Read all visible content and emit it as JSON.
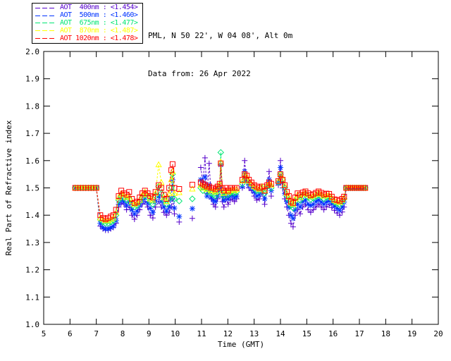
{
  "header": {
    "line1": "PML, N 50 22', W 04 08', Alt 0m",
    "line2": "Data from: 26 Apr 2022"
  },
  "legend": {
    "items": [
      {
        "label": "AOT  400nm : <1.454>",
        "color": "#5500cc",
        "marker": "plus-icon"
      },
      {
        "label": "AOT  500nm : <1.460>",
        "color": "#0033ff",
        "marker": "asterisk-icon"
      },
      {
        "label": "AOT  675nm : <1.477>",
        "color": "#00e673",
        "marker": "diamond-icon"
      },
      {
        "label": "AOT  870nm : <1.487>",
        "color": "#ffff00",
        "marker": "triangle-icon"
      },
      {
        "label": "AOT 1020nm : <1.478>",
        "color": "#ff0000",
        "marker": "square-icon"
      }
    ]
  },
  "chart_data": {
    "type": "line",
    "title": "",
    "xlabel": "Time (GMT)",
    "ylabel": "Real Part of Refractive index",
    "xlim": [
      5,
      20
    ],
    "ylim": [
      1.0,
      2.0
    ],
    "x_ticks": [
      5,
      6,
      7,
      8,
      9,
      10,
      11,
      12,
      13,
      14,
      15,
      16,
      17,
      18,
      19,
      20
    ],
    "y_ticks": [
      1.0,
      1.1,
      1.2,
      1.3,
      1.4,
      1.5,
      1.6,
      1.7,
      1.8,
      1.9,
      2.0
    ],
    "grid": false,
    "legend_position": "top-left",
    "line_style": "dashed",
    "gap_threshold": 0.17,
    "x": [
      6.2,
      6.3,
      6.4,
      6.5,
      6.6,
      6.7,
      6.8,
      6.9,
      7.0,
      7.15,
      7.25,
      7.35,
      7.45,
      7.55,
      7.65,
      7.75,
      7.85,
      7.95,
      8.05,
      8.15,
      8.25,
      8.35,
      8.45,
      8.55,
      8.65,
      8.75,
      8.85,
      8.95,
      9.05,
      9.15,
      9.25,
      9.37,
      9.47,
      9.57,
      9.67,
      9.77,
      9.85,
      9.9,
      9.97,
      10.15,
      10.65,
      10.97,
      11.05,
      11.13,
      11.21,
      11.29,
      11.37,
      11.45,
      11.53,
      11.61,
      11.69,
      11.73,
      11.79,
      11.85,
      11.93,
      12.01,
      12.09,
      12.17,
      12.25,
      12.33,
      12.55,
      12.64,
      12.72,
      12.8,
      12.9,
      13.0,
      13.1,
      13.2,
      13.3,
      13.4,
      13.5,
      13.57,
      13.65,
      13.92,
      14.0,
      14.08,
      14.16,
      14.24,
      14.32,
      14.4,
      14.48,
      14.56,
      14.65,
      14.75,
      14.85,
      14.95,
      15.05,
      15.15,
      15.25,
      15.35,
      15.45,
      15.55,
      15.65,
      15.75,
      15.85,
      15.95,
      16.05,
      16.15,
      16.25,
      16.35,
      16.42,
      16.5,
      16.58,
      16.66,
      16.74,
      16.82,
      16.9,
      16.98,
      17.06,
      17.14,
      17.22
    ],
    "series": [
      {
        "name": "AOT 400nm",
        "retrieval_mean": 1.454,
        "color": "#5500cc",
        "marker": "plus",
        "values": [
          1.5,
          1.5,
          1.5,
          1.5,
          1.5,
          1.5,
          1.5,
          1.5,
          1.5,
          1.36,
          1.35,
          1.345,
          1.345,
          1.35,
          1.355,
          1.37,
          1.43,
          1.445,
          1.44,
          1.42,
          1.43,
          1.4,
          1.385,
          1.4,
          1.42,
          1.44,
          1.45,
          1.43,
          1.4,
          1.39,
          1.43,
          1.45,
          1.43,
          1.41,
          1.4,
          1.41,
          1.43,
          1.46,
          1.405,
          1.375,
          1.388,
          1.575,
          1.52,
          1.61,
          1.48,
          1.59,
          1.46,
          1.44,
          1.43,
          1.46,
          1.49,
          1.585,
          1.45,
          1.43,
          1.46,
          1.44,
          1.455,
          1.46,
          1.45,
          1.46,
          1.5,
          1.6,
          1.52,
          1.5,
          1.49,
          1.47,
          1.455,
          1.46,
          1.48,
          1.44,
          1.5,
          1.56,
          1.47,
          1.51,
          1.6,
          1.5,
          1.46,
          1.43,
          1.4,
          1.37,
          1.357,
          1.4,
          1.42,
          1.405,
          1.43,
          1.44,
          1.42,
          1.41,
          1.42,
          1.43,
          1.44,
          1.43,
          1.42,
          1.43,
          1.438,
          1.428,
          1.418,
          1.408,
          1.4,
          1.412,
          1.43,
          1.5,
          1.5,
          1.5,
          1.5,
          1.5,
          1.5,
          1.5,
          1.5,
          1.5,
          1.5
        ]
      },
      {
        "name": "AOT 500nm",
        "retrieval_mean": 1.46,
        "color": "#0033ff",
        "marker": "asterisk",
        "values": [
          1.5,
          1.5,
          1.5,
          1.5,
          1.5,
          1.5,
          1.5,
          1.5,
          1.5,
          1.37,
          1.355,
          1.35,
          1.35,
          1.355,
          1.36,
          1.38,
          1.44,
          1.455,
          1.45,
          1.435,
          1.445,
          1.42,
          1.405,
          1.415,
          1.435,
          1.45,
          1.465,
          1.445,
          1.425,
          1.41,
          1.45,
          1.47,
          1.45,
          1.43,
          1.415,
          1.43,
          1.46,
          1.53,
          1.426,
          1.395,
          1.424,
          1.53,
          1.5,
          1.54,
          1.47,
          1.51,
          1.465,
          1.455,
          1.45,
          1.47,
          1.5,
          1.585,
          1.47,
          1.455,
          1.475,
          1.46,
          1.47,
          1.475,
          1.465,
          1.47,
          1.505,
          1.56,
          1.525,
          1.51,
          1.5,
          1.485,
          1.47,
          1.475,
          1.49,
          1.46,
          1.505,
          1.53,
          1.49,
          1.52,
          1.575,
          1.52,
          1.48,
          1.45,
          1.43,
          1.4,
          1.388,
          1.42,
          1.44,
          1.43,
          1.45,
          1.455,
          1.44,
          1.435,
          1.44,
          1.45,
          1.456,
          1.448,
          1.44,
          1.448,
          1.453,
          1.443,
          1.433,
          1.425,
          1.418,
          1.43,
          1.448,
          1.5,
          1.5,
          1.5,
          1.5,
          1.5,
          1.5,
          1.5,
          1.5,
          1.5,
          1.5
        ]
      },
      {
        "name": "AOT 675nm",
        "retrieval_mean": 1.477,
        "color": "#00e673",
        "marker": "diamond",
        "values": [
          1.5,
          1.5,
          1.5,
          1.5,
          1.5,
          1.5,
          1.5,
          1.5,
          1.5,
          1.385,
          1.375,
          1.37,
          1.37,
          1.375,
          1.38,
          1.4,
          1.455,
          1.47,
          1.465,
          1.455,
          1.46,
          1.44,
          1.43,
          1.435,
          1.45,
          1.465,
          1.48,
          1.465,
          1.45,
          1.44,
          1.47,
          1.505,
          1.48,
          1.455,
          1.44,
          1.46,
          1.5,
          1.55,
          1.46,
          1.452,
          1.46,
          1.5,
          1.49,
          1.5,
          1.485,
          1.49,
          1.48,
          1.475,
          1.47,
          1.49,
          1.51,
          1.63,
          1.48,
          1.47,
          1.485,
          1.475,
          1.48,
          1.485,
          1.48,
          1.485,
          1.515,
          1.545,
          1.53,
          1.52,
          1.51,
          1.5,
          1.49,
          1.49,
          1.5,
          1.48,
          1.505,
          1.51,
          1.5,
          1.52,
          1.55,
          1.53,
          1.5,
          1.47,
          1.455,
          1.435,
          1.426,
          1.45,
          1.465,
          1.455,
          1.47,
          1.475,
          1.465,
          1.458,
          1.462,
          1.468,
          1.474,
          1.468,
          1.46,
          1.465,
          1.468,
          1.458,
          1.448,
          1.442,
          1.438,
          1.448,
          1.46,
          1.5,
          1.5,
          1.5,
          1.5,
          1.5,
          1.5,
          1.5,
          1.5,
          1.5,
          1.5
        ]
      },
      {
        "name": "AOT 870nm",
        "retrieval_mean": 1.487,
        "color": "#ffff00",
        "marker": "triangle",
        "values": [
          1.5,
          1.5,
          1.5,
          1.5,
          1.5,
          1.5,
          1.5,
          1.5,
          1.5,
          1.39,
          1.385,
          1.38,
          1.38,
          1.385,
          1.39,
          1.41,
          1.465,
          1.48,
          1.475,
          1.465,
          1.47,
          1.45,
          1.44,
          1.445,
          1.455,
          1.475,
          1.485,
          1.475,
          1.46,
          1.455,
          1.48,
          1.585,
          1.52,
          1.465,
          1.45,
          1.48,
          1.53,
          1.56,
          1.48,
          1.483,
          1.496,
          1.51,
          1.5,
          1.505,
          1.495,
          1.5,
          1.49,
          1.49,
          1.485,
          1.5,
          1.515,
          1.595,
          1.49,
          1.48,
          1.49,
          1.485,
          1.49,
          1.495,
          1.49,
          1.495,
          1.525,
          1.55,
          1.54,
          1.525,
          1.515,
          1.505,
          1.5,
          1.495,
          1.505,
          1.49,
          1.51,
          1.515,
          1.51,
          1.525,
          1.55,
          1.535,
          1.51,
          1.48,
          1.465,
          1.445,
          1.44,
          1.46,
          1.475,
          1.465,
          1.478,
          1.483,
          1.475,
          1.468,
          1.472,
          1.477,
          1.483,
          1.477,
          1.47,
          1.474,
          1.474,
          1.464,
          1.454,
          1.45,
          1.447,
          1.455,
          1.465,
          1.5,
          1.5,
          1.5,
          1.5,
          1.5,
          1.5,
          1.5,
          1.5,
          1.5,
          1.5
        ]
      },
      {
        "name": "AOT 1020nm",
        "retrieval_mean": 1.478,
        "color": "#ff0000",
        "marker": "square",
        "values": [
          1.5,
          1.5,
          1.5,
          1.5,
          1.5,
          1.5,
          1.5,
          1.5,
          1.5,
          1.4,
          1.39,
          1.385,
          1.39,
          1.395,
          1.4,
          1.42,
          1.47,
          1.49,
          1.48,
          1.475,
          1.485,
          1.46,
          1.445,
          1.45,
          1.465,
          1.48,
          1.49,
          1.48,
          1.47,
          1.465,
          1.485,
          1.51,
          1.5,
          1.475,
          1.46,
          1.5,
          1.565,
          1.587,
          1.5,
          1.496,
          1.512,
          1.52,
          1.515,
          1.51,
          1.505,
          1.505,
          1.5,
          1.5,
          1.495,
          1.505,
          1.515,
          1.59,
          1.5,
          1.49,
          1.5,
          1.49,
          1.5,
          1.5,
          1.5,
          1.5,
          1.53,
          1.55,
          1.545,
          1.53,
          1.52,
          1.51,
          1.505,
          1.5,
          1.505,
          1.49,
          1.51,
          1.52,
          1.515,
          1.525,
          1.55,
          1.53,
          1.51,
          1.485,
          1.47,
          1.45,
          1.445,
          1.465,
          1.48,
          1.475,
          1.483,
          1.487,
          1.48,
          1.473,
          1.477,
          1.482,
          1.487,
          1.482,
          1.476,
          1.479,
          1.478,
          1.468,
          1.458,
          1.456,
          1.453,
          1.46,
          1.468,
          1.5,
          1.5,
          1.5,
          1.5,
          1.5,
          1.5,
          1.5,
          1.5,
          1.5,
          1.5
        ]
      }
    ]
  }
}
